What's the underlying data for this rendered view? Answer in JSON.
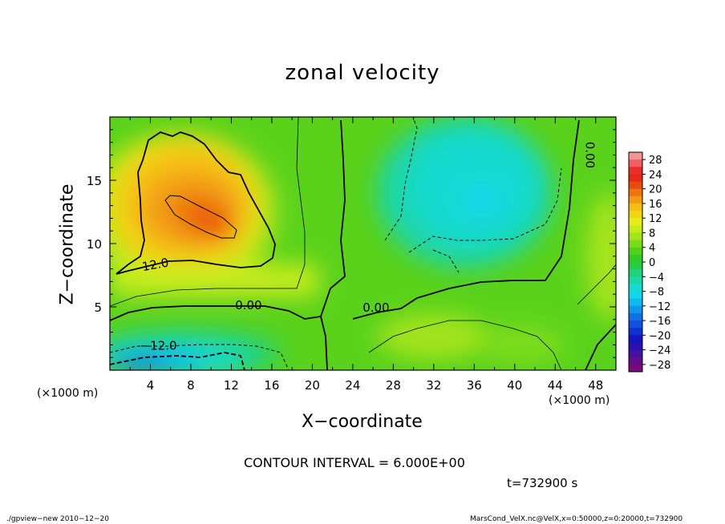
{
  "chart_data": {
    "type": "heatmap",
    "title": "zonal velocity",
    "xlabel": "X−coordinate",
    "ylabel": "Z−coordinate",
    "x_unit_left": "(×1000 m)",
    "x_unit_right": "(×1000 m)",
    "xlim": [
      0,
      50
    ],
    "ylim": [
      0,
      20
    ],
    "x_ticks": [
      4,
      8,
      12,
      16,
      20,
      24,
      28,
      32,
      36,
      40,
      44,
      48
    ],
    "y_ticks": [
      5,
      10,
      15
    ],
    "colorbar": {
      "ticks": [
        "28",
        "24",
        "20",
        "16",
        "12",
        "8",
        "4",
        "0",
        "−4",
        "−8",
        "−12",
        "−16",
        "−20",
        "−24",
        "−28"
      ],
      "levels": [
        30,
        28,
        26,
        24,
        22,
        20,
        18,
        16,
        14,
        12,
        10,
        8,
        6,
        4,
        2,
        0,
        -2,
        -4,
        -6,
        -8,
        -10,
        -12,
        -14,
        -16,
        -18,
        -20,
        -22,
        -24,
        -26,
        -28,
        -30
      ],
      "colors": [
        "#f49494",
        "#f06060",
        "#ea2e2e",
        "#e62a18",
        "#e84a10",
        "#ee7410",
        "#f29a12",
        "#f6bc14",
        "#f2d614",
        "#e8ec1a",
        "#c8ec1a",
        "#a4e41c",
        "#7cdc1c",
        "#50d21c",
        "#30cc24",
        "#28cc48",
        "#20d27c",
        "#1cd6a8",
        "#16dad0",
        "#12d6ec",
        "#10b8f0",
        "#1094ec",
        "#1070e4",
        "#1050dc",
        "#1030d0",
        "#1414c0",
        "#2a10b0",
        "#46109e",
        "#620c8c",
        "#7a0a7a"
      ]
    },
    "contour_labels": [
      "12.0",
      "0.00",
      "0.00",
      "−12.0",
      "0.00"
    ],
    "contour_interval_text": "CONTOUR INTERVAL = 6.000E+00",
    "time_text": "t=732900 s",
    "footer_left": "./gpview−new   2010−12−20",
    "footer_right": "MarsCond_VelX.nc@VelX,x=0:50000,z=0:20000,t=732900"
  }
}
